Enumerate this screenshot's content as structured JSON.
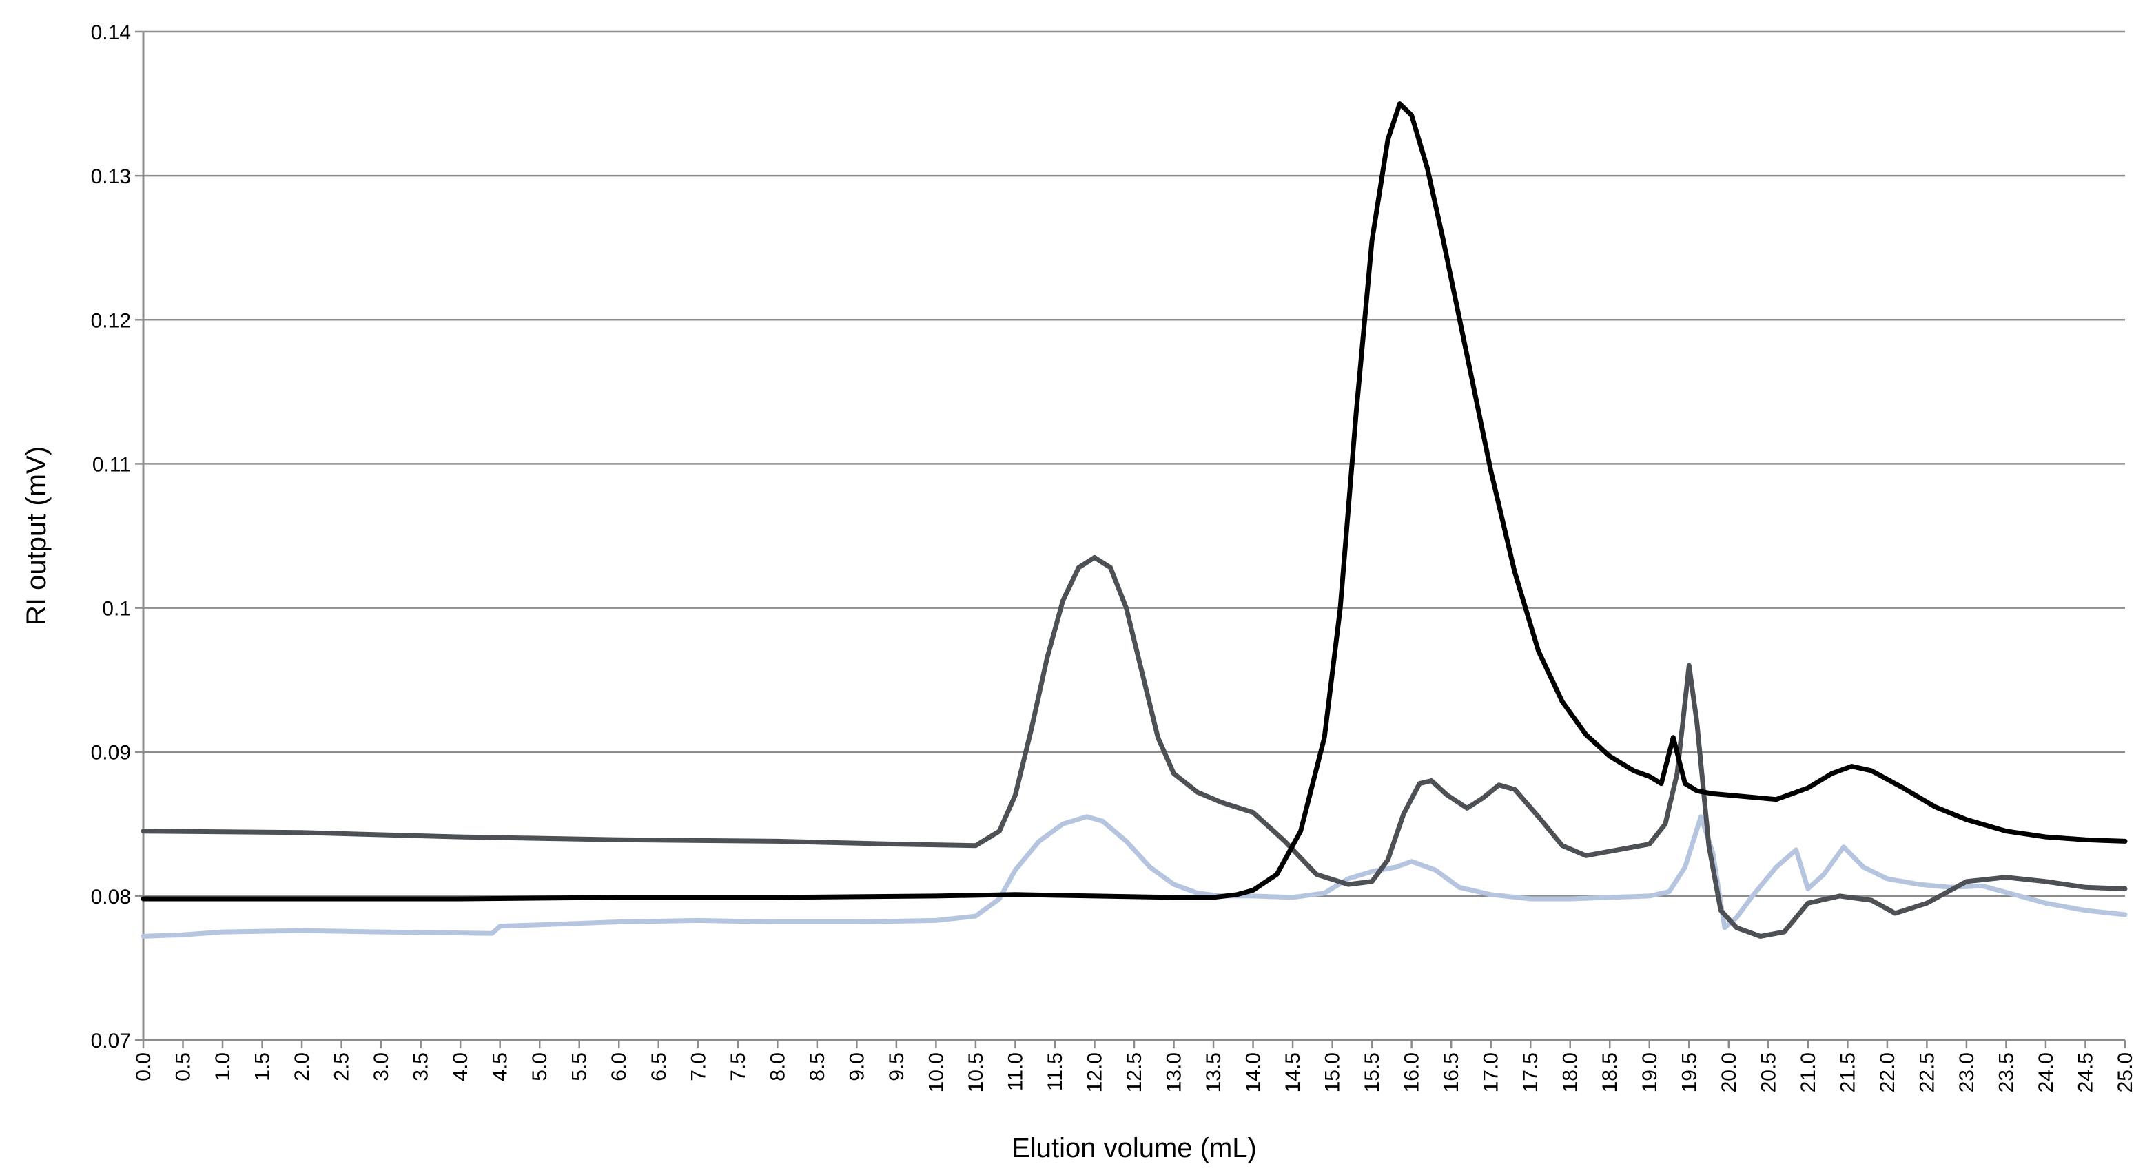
{
  "chart_data": {
    "type": "line",
    "title": "",
    "xlabel": "Elution volume (mL)",
    "ylabel": "RI output (mV)",
    "xlim": [
      0,
      25
    ],
    "ylim": [
      0.07,
      0.14
    ],
    "grid": "horizontal",
    "legend": "none",
    "x_ticks": [
      "0.0",
      "0.5",
      "1.0",
      "1.5",
      "2.0",
      "2.5",
      "3.0",
      "3.5",
      "4.0",
      "4.5",
      "5.0",
      "5.5",
      "6.0",
      "6.5",
      "7.0",
      "7.5",
      "8.0",
      "8.5",
      "9.0",
      "9.5",
      "10.0",
      "10.5",
      "11.0",
      "11.5",
      "12.0",
      "12.5",
      "13.0",
      "13.5",
      "14.0",
      "14.5",
      "15.0",
      "15.5",
      "16.0",
      "16.5",
      "17.0",
      "17.5",
      "18.0",
      "18.5",
      "19.0",
      "19.5",
      "20.0",
      "20.5",
      "21.0",
      "21.5",
      "22.0",
      "22.5",
      "23.0",
      "23.5",
      "24.0",
      "24.5",
      "25.0"
    ],
    "y_ticks": [
      "0.07",
      "0.08",
      "0.09",
      "0.1",
      "0.11",
      "0.12",
      "0.13",
      "0.14"
    ],
    "series": [
      {
        "color": "#000000",
        "x": [
          0,
          2,
          4,
          6,
          8,
          10,
          11,
          12,
          13,
          13.5,
          13.8,
          14.0,
          14.3,
          14.6,
          14.9,
          15.1,
          15.3,
          15.5,
          15.7,
          15.85,
          16.0,
          16.2,
          16.4,
          16.7,
          17.0,
          17.3,
          17.6,
          17.9,
          18.2,
          18.5,
          18.8,
          19.0,
          19.15,
          19.3,
          19.45,
          19.6,
          19.8,
          20.2,
          20.6,
          21.0,
          21.3,
          21.55,
          21.8,
          22.2,
          22.6,
          23.0,
          23.5,
          24.0,
          24.5,
          25.0
        ],
        "y": [
          0.0798,
          0.0798,
          0.0798,
          0.0799,
          0.0799,
          0.08,
          0.0801,
          0.08,
          0.0799,
          0.0799,
          0.0801,
          0.0804,
          0.0815,
          0.0845,
          0.091,
          0.1,
          0.1135,
          0.1255,
          0.1325,
          0.135,
          0.1342,
          0.1305,
          0.1255,
          0.1175,
          0.1095,
          0.1025,
          0.097,
          0.0935,
          0.0912,
          0.0897,
          0.0887,
          0.0883,
          0.0878,
          0.091,
          0.0878,
          0.0873,
          0.0871,
          0.0869,
          0.0867,
          0.0875,
          0.0885,
          0.089,
          0.0887,
          0.0875,
          0.0862,
          0.0853,
          0.0845,
          0.0841,
          0.0839,
          0.0838
        ]
      },
      {
        "color": "#4d5054",
        "x": [
          0,
          2,
          4,
          6,
          8,
          9.5,
          10.5,
          10.8,
          11.0,
          11.2,
          11.4,
          11.6,
          11.8,
          12.0,
          12.2,
          12.4,
          12.6,
          12.8,
          13.0,
          13.3,
          13.6,
          14.0,
          14.4,
          14.8,
          15.2,
          15.5,
          15.7,
          15.9,
          16.1,
          16.25,
          16.45,
          16.7,
          16.9,
          17.1,
          17.3,
          17.6,
          17.9,
          18.2,
          18.6,
          19.0,
          19.2,
          19.35,
          19.5,
          19.6,
          19.75,
          19.9,
          20.1,
          20.4,
          20.7,
          21.0,
          21.4,
          21.8,
          22.1,
          22.5,
          23.0,
          23.5,
          24.0,
          24.5,
          25.0
        ],
        "y": [
          0.0845,
          0.0844,
          0.0841,
          0.0839,
          0.0838,
          0.0836,
          0.0835,
          0.0845,
          0.087,
          0.0915,
          0.0965,
          0.1005,
          0.1028,
          0.1035,
          0.1028,
          0.1,
          0.0955,
          0.091,
          0.0885,
          0.0872,
          0.0865,
          0.0858,
          0.0838,
          0.0815,
          0.0808,
          0.081,
          0.0825,
          0.0857,
          0.0878,
          0.088,
          0.087,
          0.0861,
          0.0868,
          0.0877,
          0.0874,
          0.0855,
          0.0835,
          0.0828,
          0.0832,
          0.0836,
          0.085,
          0.0885,
          0.096,
          0.092,
          0.0835,
          0.079,
          0.0778,
          0.0772,
          0.0775,
          0.0795,
          0.08,
          0.0797,
          0.0788,
          0.0795,
          0.081,
          0.0813,
          0.081,
          0.0806,
          0.0805
        ]
      },
      {
        "color": "#b6c5df",
        "x": [
          0,
          0.5,
          1,
          2,
          3,
          4.4,
          4.5,
          5,
          6,
          7,
          8,
          9,
          10,
          10.5,
          10.8,
          11.0,
          11.3,
          11.6,
          11.9,
          12.1,
          12.4,
          12.7,
          13.0,
          13.3,
          13.6,
          14.0,
          14.5,
          14.9,
          15.2,
          15.5,
          15.8,
          16.0,
          16.3,
          16.6,
          17.0,
          17.5,
          18.0,
          18.5,
          19.0,
          19.25,
          19.45,
          19.65,
          19.8,
          19.95,
          20.1,
          20.3,
          20.6,
          20.85,
          21.0,
          21.2,
          21.45,
          21.7,
          22.0,
          22.4,
          22.8,
          23.2,
          23.6,
          24.0,
          24.5,
          25.0
        ],
        "y": [
          0.0772,
          0.0773,
          0.0775,
          0.0776,
          0.0775,
          0.0774,
          0.0779,
          0.078,
          0.0782,
          0.0783,
          0.0782,
          0.0782,
          0.0783,
          0.0786,
          0.0798,
          0.0818,
          0.0838,
          0.085,
          0.0855,
          0.0852,
          0.0838,
          0.082,
          0.0808,
          0.0802,
          0.08,
          0.08,
          0.0799,
          0.0802,
          0.0812,
          0.0817,
          0.082,
          0.0824,
          0.0818,
          0.0806,
          0.0801,
          0.0798,
          0.0798,
          0.0799,
          0.08,
          0.0803,
          0.082,
          0.0855,
          0.083,
          0.0778,
          0.0785,
          0.08,
          0.082,
          0.0832,
          0.0805,
          0.0815,
          0.0834,
          0.082,
          0.0812,
          0.0808,
          0.0806,
          0.0807,
          0.0801,
          0.0795,
          0.079,
          0.0787
        ]
      }
    ]
  }
}
